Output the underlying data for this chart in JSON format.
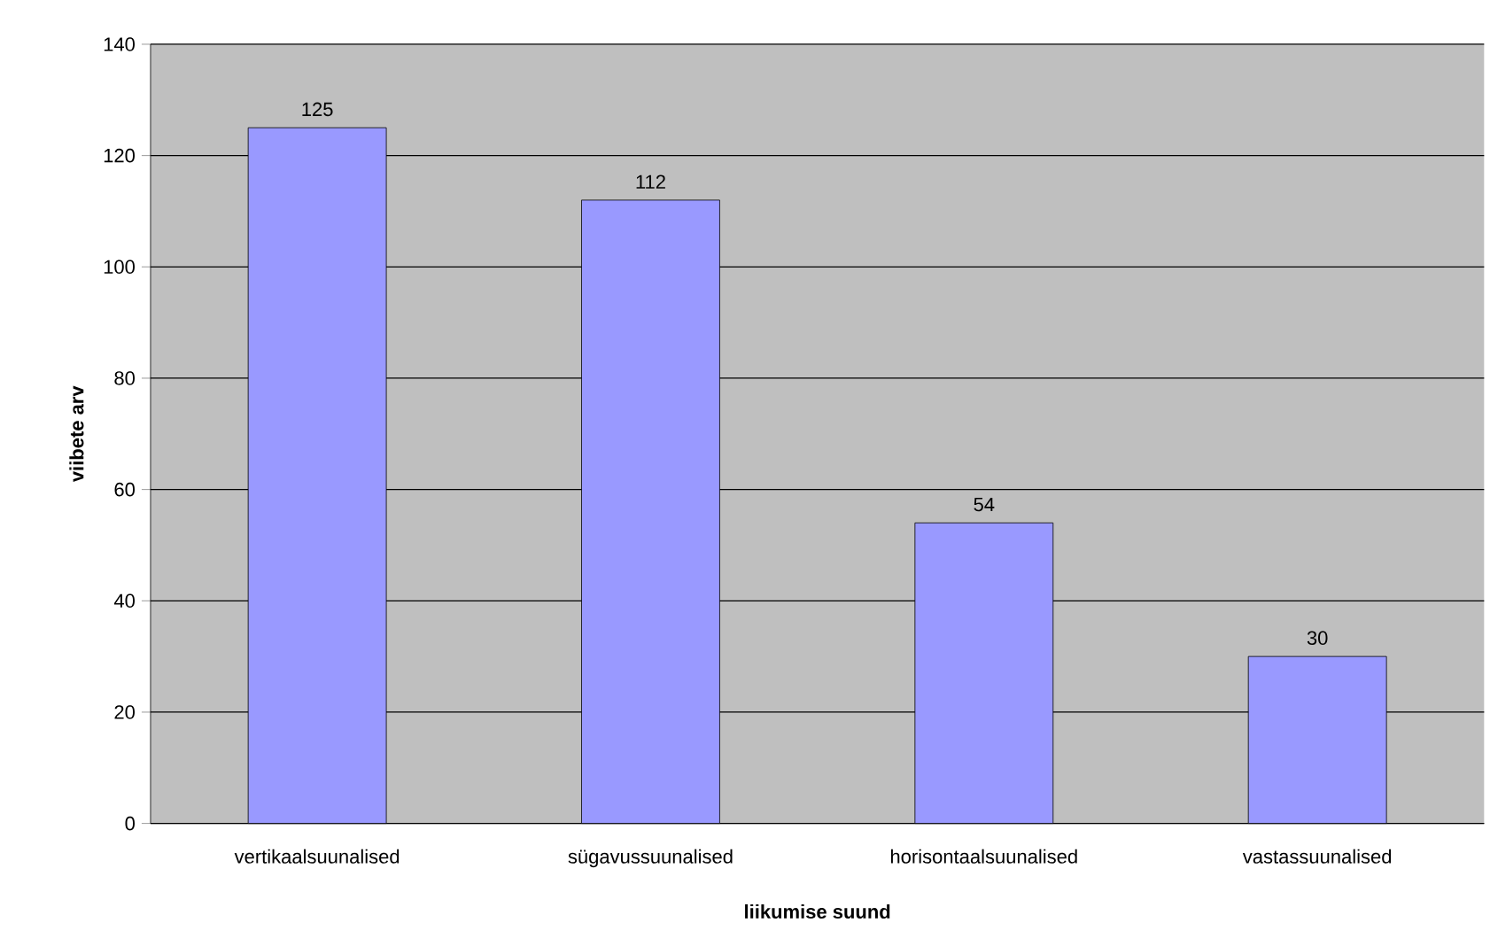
{
  "chart_data": {
    "type": "bar",
    "xlabel": "liikumise suund",
    "ylabel": "viibete arv",
    "categories": [
      "vertikaalsuunalised",
      "sügavussuunalised",
      "horisontaalsuunalised",
      "vastassuunalised"
    ],
    "values": [
      125,
      112,
      54,
      30
    ],
    "color": "#9999ff",
    "ylim": [
      0,
      140
    ],
    "yticks": [
      0,
      20,
      40,
      60,
      80,
      100,
      120,
      140
    ],
    "grid": "y",
    "data_labels": true
  }
}
